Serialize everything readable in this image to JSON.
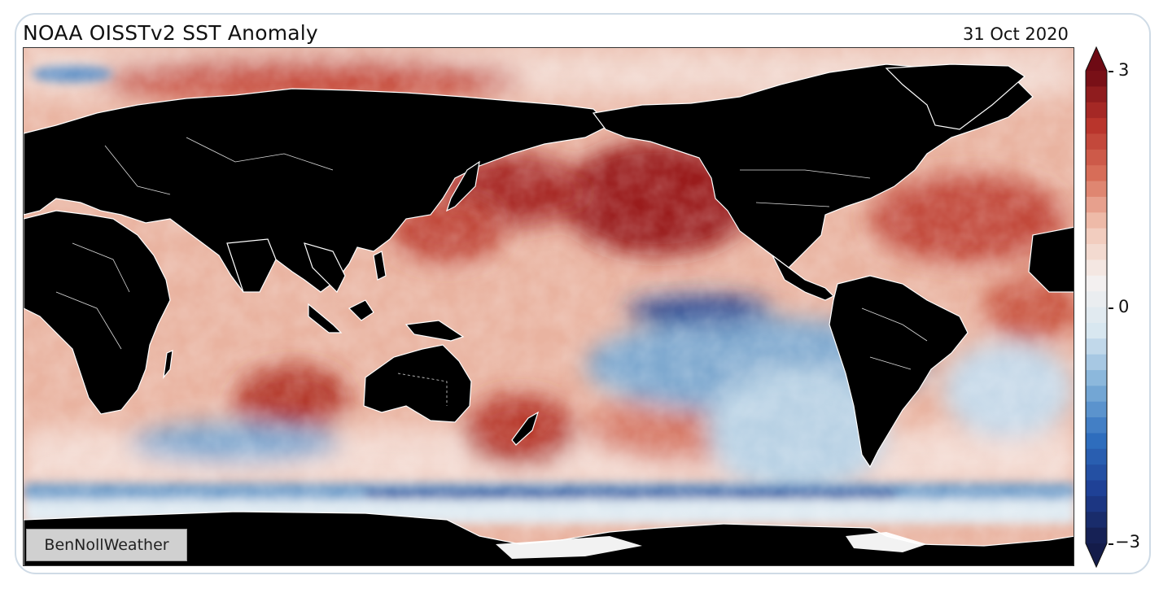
{
  "map": {
    "title": "NOAA OISSTv2 SST Anomaly",
    "date": "31 Oct 2020",
    "watermark": "BenNollWeather"
  },
  "colorbar": {
    "ticks": [
      {
        "label": "3",
        "value": 3
      },
      {
        "label": "0",
        "value": 0
      },
      {
        "label": "−3",
        "value": -3
      }
    ],
    "min": -3,
    "max": 3,
    "levels": 30,
    "colors": [
      "#141c4a",
      "#1e3f94",
      "#2f6fbf",
      "#7fb0d8",
      "#d7e6f0",
      "#f4f1f0",
      "#f2c7b6",
      "#d9705a",
      "#b7322a",
      "#6e0a14"
    ]
  },
  "legend_colors": {
    "land": "#000000",
    "boundaries": "#ffffff",
    "ice": "#ffffff"
  }
}
